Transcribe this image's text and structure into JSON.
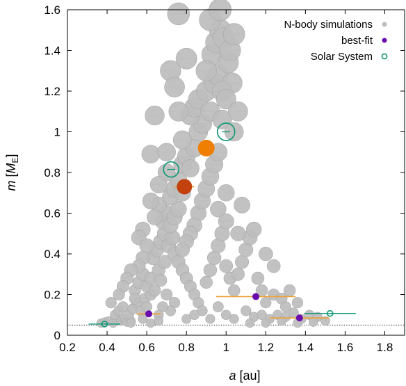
{
  "chart_data": {
    "type": "scatter",
    "xlabel": {
      "var": "a",
      "unit": " [au]"
    },
    "ylabel": {
      "var": "m",
      "open": " [",
      "unit": "M",
      "sub": "E",
      "close": "]"
    },
    "xlim": [
      0.2,
      1.9
    ],
    "ylim": [
      0,
      1.6
    ],
    "xticks": [
      "0.2",
      "0.4",
      "0.6",
      "0.8",
      "1",
      "1.2",
      "1.4",
      "1.6",
      "1.8"
    ],
    "yticks": [
      "0",
      "0.2",
      "0.4",
      "0.6",
      "0.8",
      "1",
      "1.2",
      "1.4",
      "1.6"
    ],
    "grid": false,
    "legend_position": "top-right",
    "reference_line": {
      "y": 0.05,
      "style": "dotted"
    },
    "colors": {
      "nbody": "#bdbdbd",
      "nbody_edge": "#a8a8a8",
      "bestfit": "#6a0dad",
      "bestfit_err": "#f0a030",
      "solar": "#129a78",
      "venus_fill": "#ee7f00",
      "mars_fill": "#c2410c"
    },
    "series": [
      {
        "name": "N-body simulations",
        "marker": "filled-circle",
        "points": [
          [
            0.37,
            0.06,
            0.012
          ],
          [
            0.39,
            0.065,
            0.015
          ],
          [
            0.41,
            0.07,
            0.016
          ],
          [
            0.43,
            0.06,
            0.013
          ],
          [
            0.45,
            0.075,
            0.017
          ],
          [
            0.47,
            0.07,
            0.015
          ],
          [
            0.49,
            0.08,
            0.017
          ],
          [
            0.5,
            0.065,
            0.015
          ],
          [
            0.52,
            0.07,
            0.016
          ],
          [
            0.44,
            0.1,
            0.018
          ],
          [
            0.46,
            0.12,
            0.02
          ],
          [
            0.48,
            0.14,
            0.02
          ],
          [
            0.51,
            0.1,
            0.018
          ],
          [
            0.53,
            0.13,
            0.019
          ],
          [
            0.55,
            0.16,
            0.02
          ],
          [
            0.57,
            0.12,
            0.019
          ],
          [
            0.59,
            0.18,
            0.021
          ],
          [
            0.6,
            0.14,
            0.02
          ],
          [
            0.62,
            0.2,
            0.021
          ],
          [
            0.54,
            0.22,
            0.021
          ],
          [
            0.56,
            0.26,
            0.022
          ],
          [
            0.58,
            0.3,
            0.024
          ],
          [
            0.6,
            0.24,
            0.022
          ],
          [
            0.62,
            0.28,
            0.023
          ],
          [
            0.64,
            0.22,
            0.022
          ],
          [
            0.66,
            0.32,
            0.025
          ],
          [
            0.67,
            0.27,
            0.023
          ],
          [
            0.69,
            0.36,
            0.026
          ],
          [
            0.63,
            0.38,
            0.026
          ],
          [
            0.65,
            0.42,
            0.027
          ],
          [
            0.67,
            0.46,
            0.028
          ],
          [
            0.69,
            0.5,
            0.029
          ],
          [
            0.71,
            0.44,
            0.028
          ],
          [
            0.73,
            0.48,
            0.029
          ],
          [
            0.68,
            0.56,
            0.03
          ],
          [
            0.7,
            0.6,
            0.031
          ],
          [
            0.72,
            0.54,
            0.03
          ],
          [
            0.74,
            0.58,
            0.031
          ],
          [
            0.76,
            0.62,
            0.032
          ],
          [
            0.66,
            0.64,
            0.031
          ],
          [
            0.72,
            0.68,
            0.033
          ],
          [
            0.74,
            0.72,
            0.034
          ],
          [
            0.76,
            0.76,
            0.035
          ],
          [
            0.78,
            0.7,
            0.034
          ],
          [
            0.7,
            0.8,
            0.035
          ],
          [
            0.78,
            0.84,
            0.036
          ],
          [
            0.8,
            0.88,
            0.037
          ],
          [
            0.82,
            0.82,
            0.036
          ],
          [
            0.84,
            0.92,
            0.038
          ],
          [
            0.78,
            0.96,
            0.038
          ],
          [
            0.86,
            1.0,
            0.039
          ],
          [
            0.88,
            1.04,
            0.04
          ],
          [
            0.82,
            1.08,
            0.041
          ],
          [
            0.84,
            1.12,
            0.042
          ],
          [
            0.86,
            1.16,
            0.042
          ],
          [
            0.9,
            1.2,
            0.043
          ],
          [
            0.92,
            1.1,
            0.041
          ],
          [
            0.94,
            1.24,
            0.044
          ],
          [
            0.96,
            1.28,
            0.044
          ],
          [
            0.93,
            1.38,
            0.045
          ],
          [
            0.95,
            1.44,
            0.046
          ],
          [
            0.97,
            1.5,
            0.046
          ],
          [
            0.99,
            1.46,
            0.046
          ],
          [
            1.01,
            1.34,
            0.045
          ],
          [
            1.03,
            1.24,
            0.044
          ],
          [
            1.02,
            1.4,
            0.045
          ],
          [
            1.04,
            1.48,
            0.046
          ],
          [
            0.92,
            1.55,
            0.047
          ],
          [
            0.97,
            1.6,
            0.047
          ],
          [
            0.76,
            1.58,
            0.047
          ],
          [
            0.8,
            1.36,
            0.045
          ],
          [
            0.72,
            1.3,
            0.044
          ],
          [
            0.74,
            1.22,
            0.043
          ],
          [
            0.76,
            1.1,
            0.041
          ],
          [
            0.98,
            1.2,
            0.043
          ],
          [
            1.0,
            1.16,
            0.042
          ],
          [
            0.9,
            1.3,
            0.044
          ],
          [
            0.64,
            1.08,
            0.025
          ],
          [
            0.62,
            0.89,
            0.028
          ],
          [
            0.7,
            0.9,
            0.03
          ],
          [
            0.58,
            0.52,
            0.023
          ],
          [
            0.56,
            0.48,
            0.022
          ],
          [
            0.6,
            0.44,
            0.022
          ],
          [
            0.58,
            0.38,
            0.022
          ],
          [
            0.56,
            0.34,
            0.021
          ],
          [
            0.74,
            0.4,
            0.025
          ],
          [
            0.76,
            0.36,
            0.024
          ],
          [
            0.78,
            0.32,
            0.024
          ],
          [
            0.8,
            0.28,
            0.023
          ],
          [
            0.82,
            0.24,
            0.022
          ],
          [
            0.84,
            0.2,
            0.021
          ],
          [
            0.86,
            0.16,
            0.02
          ],
          [
            0.88,
            0.12,
            0.019
          ],
          [
            0.9,
            0.26,
            0.022
          ],
          [
            0.92,
            0.32,
            0.023
          ],
          [
            0.94,
            0.38,
            0.024
          ],
          [
            0.96,
            0.44,
            0.025
          ],
          [
            0.98,
            0.5,
            0.026
          ],
          [
            1.0,
            0.34,
            0.024
          ],
          [
            1.02,
            0.28,
            0.022
          ],
          [
            1.04,
            0.22,
            0.021
          ],
          [
            1.06,
            0.3,
            0.022
          ],
          [
            1.08,
            0.36,
            0.023
          ],
          [
            1.1,
            0.42,
            0.024
          ],
          [
            1.12,
            0.48,
            0.025
          ],
          [
            1.14,
            0.52,
            0.025
          ],
          [
            1.16,
            0.28,
            0.021
          ],
          [
            1.18,
            0.22,
            0.02
          ],
          [
            1.2,
            0.16,
            0.019
          ],
          [
            1.1,
            0.12,
            0.018
          ],
          [
            1.14,
            0.09,
            0.017
          ],
          [
            1.18,
            0.1,
            0.017
          ],
          [
            1.22,
            0.08,
            0.016
          ],
          [
            1.26,
            0.1,
            0.017
          ],
          [
            1.3,
            0.09,
            0.016
          ],
          [
            1.34,
            0.11,
            0.017
          ],
          [
            1.38,
            0.08,
            0.016
          ],
          [
            1.42,
            0.1,
            0.017
          ],
          [
            1.46,
            0.09,
            0.016
          ],
          [
            1.24,
            0.2,
            0.02
          ],
          [
            1.28,
            0.18,
            0.019
          ],
          [
            1.32,
            0.22,
            0.02
          ],
          [
            1.36,
            0.16,
            0.019
          ],
          [
            1.3,
            0.14,
            0.018
          ],
          [
            1.0,
            0.1,
            0.018
          ],
          [
            1.04,
            0.08,
            0.016
          ],
          [
            0.96,
            0.14,
            0.019
          ],
          [
            0.92,
            0.08,
            0.016
          ],
          [
            0.74,
            0.16,
            0.019
          ],
          [
            0.72,
            0.12,
            0.018
          ],
          [
            0.7,
            0.2,
            0.02
          ],
          [
            0.68,
            0.14,
            0.019
          ],
          [
            0.66,
            0.1,
            0.018
          ],
          [
            0.8,
            0.08,
            0.016
          ],
          [
            0.84,
            0.1,
            0.017
          ],
          [
            0.86,
            0.6,
            0.03
          ],
          [
            0.88,
            0.66,
            0.031
          ],
          [
            0.9,
            0.72,
            0.033
          ],
          [
            0.92,
            0.78,
            0.034
          ],
          [
            0.94,
            0.84,
            0.035
          ],
          [
            0.96,
            0.9,
            0.036
          ],
          [
            0.84,
            0.54,
            0.029
          ],
          [
            0.82,
            0.5,
            0.028
          ],
          [
            0.8,
            0.46,
            0.027
          ],
          [
            0.78,
            0.42,
            0.026
          ],
          [
            0.96,
            0.62,
            0.028
          ],
          [
            1.0,
            0.56,
            0.027
          ],
          [
            1.06,
            0.5,
            0.026
          ],
          [
            1.2,
            0.4,
            0.024
          ],
          [
            1.24,
            0.34,
            0.023
          ],
          [
            1.08,
            0.64,
            0.028
          ],
          [
            1.0,
            0.7,
            0.029
          ],
          [
            0.98,
            1.06,
            0.04
          ],
          [
            1.04,
            1.0,
            0.039
          ],
          [
            1.06,
            1.1,
            0.04
          ],
          [
            0.66,
            0.74,
            0.032
          ],
          [
            0.62,
            0.66,
            0.03
          ],
          [
            0.64,
            0.58,
            0.029
          ],
          [
            0.52,
            0.32,
            0.021
          ],
          [
            0.5,
            0.28,
            0.02
          ],
          [
            0.48,
            0.24,
            0.019
          ],
          [
            0.46,
            0.2,
            0.019
          ],
          [
            0.42,
            0.16,
            0.018
          ],
          [
            0.54,
            0.18,
            0.019
          ],
          [
            0.52,
            0.06,
            0.014
          ],
          [
            0.58,
            0.08,
            0.015
          ],
          [
            0.62,
            0.06,
            0.014
          ],
          [
            0.66,
            0.07,
            0.015
          ],
          [
            1.12,
            0.06,
            0.014
          ],
          [
            1.2,
            0.06,
            0.014
          ],
          [
            1.28,
            0.07,
            0.015
          ],
          [
            1.36,
            0.06,
            0.014
          ],
          [
            1.44,
            0.065,
            0.014
          ],
          [
            1.5,
            0.07,
            0.015
          ]
        ]
      },
      {
        "name": "best-fit",
        "marker": "filled-circle",
        "points": [
          [
            0.61,
            0.105,
            0.009,
            0.06
          ],
          [
            1.15,
            0.19,
            0.009,
            0.2
          ],
          [
            1.37,
            0.085,
            0.008,
            0.15
          ],
          [
            0.79,
            0.73,
            0.018,
            0.05
          ],
          [
            0.9,
            0.92,
            0.022,
            0.04
          ]
        ]
      },
      {
        "name": "Solar System",
        "marker": "open-circle",
        "points": [
          [
            0.387,
            0.055,
            0.008,
            0.08
          ],
          [
            0.723,
            0.815,
            0.02,
            0.02
          ],
          [
            1.0,
            1.0,
            0.022,
            0.02
          ],
          [
            1.524,
            0.107,
            0.009,
            0.13
          ]
        ]
      }
    ]
  }
}
